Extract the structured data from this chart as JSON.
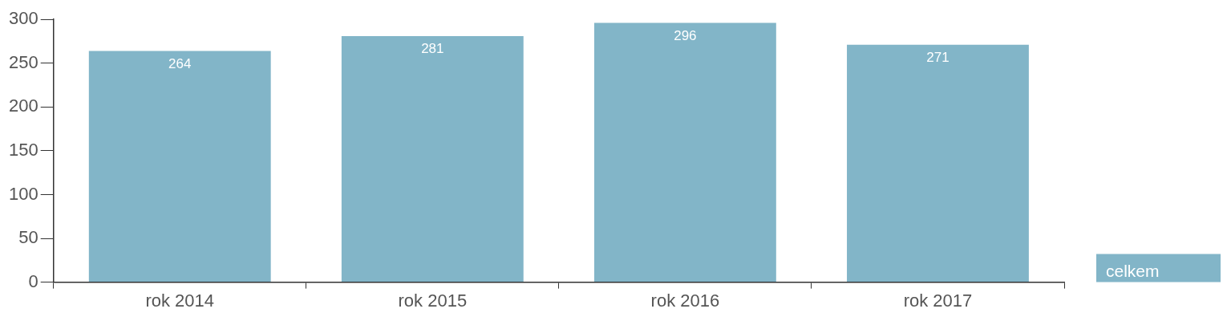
{
  "chart_data": {
    "type": "bar",
    "categories": [
      "rok 2014",
      "rok 2015",
      "rok 2016",
      "rok 2017"
    ],
    "series": [
      {
        "name": "celkem",
        "color": "#82b5c8",
        "values": [
          264,
          281,
          296,
          271
        ]
      }
    ],
    "ylim": [
      0,
      300
    ],
    "yticks": [
      0,
      50,
      100,
      150,
      200,
      250,
      300
    ],
    "grid": false,
    "legend": "bottom right",
    "data_labels": true
  }
}
